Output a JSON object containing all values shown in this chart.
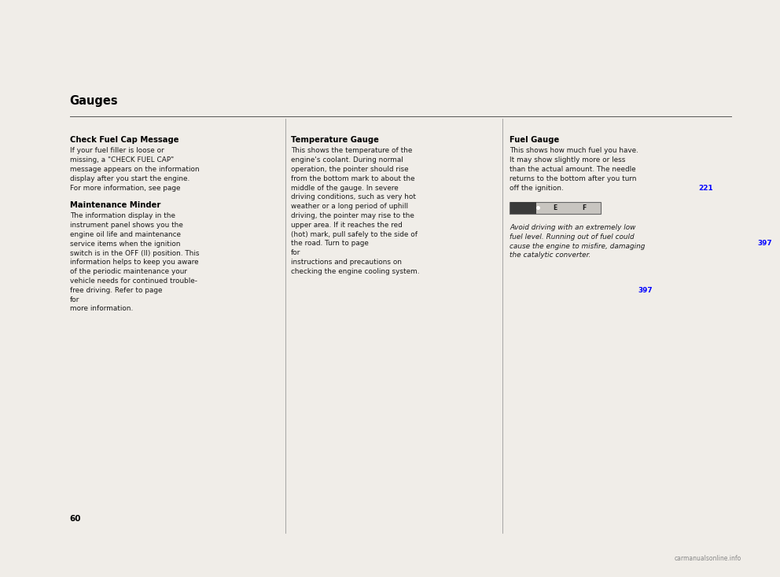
{
  "bg_color": "#f0ede8",
  "text_color": "#1a1a1a",
  "title_color": "#000000",
  "blue_color": "#0000ff",
  "header_text": "Gauges",
  "watermark": "carmanualsonline.info",
  "page_num": "60",
  "col1_title": "Check Fuel Cap Message",
  "col1_p1": "If your fuel filler is loose or\nmissing, a \"CHECK FUEL CAP\"\nmessage appears on the information\ndisplay after you start the engine.\nFor more information, see page ",
  "col1_p1_page": "221",
  "col1_p2_title": "Maintenance Minder",
  "col1_p2": "The information display in the\ninstrument panel shows you the\nengine oil life and maintenance\nservice items when the ignition\nswitch is in the OFF (II) position. This\ninformation helps to keep you aware\nof the periodic maintenance your\nvehicle needs for continued trouble-\nfree driving. Refer to page ",
  "col1_p2_page": "397",
  "col1_p2_end": " for\nmore information.",
  "col2_title": "Temperature Gauge",
  "col2_p1": "This shows the temperature of the\nengine's coolant. During normal\noperation, the pointer should rise\nfrom the bottom mark to about the\nmiddle of the gauge. In severe\ndriving conditions, such as very hot\nweather or a long period of uphill\ndriving, the pointer may rise to the\nupper area. If it reaches the red\n(hot) mark, pull safely to the side of\nthe road. Turn to page ",
  "col2_p1_page": "397",
  "col2_p1_end": " for\ninstructions and precautions on\nchecking the engine cooling system.",
  "col3_title": "Fuel Gauge",
  "col3_p1": "This shows how much fuel you have.\nIt may show slightly more or less\nthan the actual amount. The needle\nreturns to the bottom after you turn\noff the ignition.",
  "col3_p2": "Avoid driving with an extremely low\nfuel level. Running out of fuel could\ncause the engine to misfire, damaging\nthe catalytic converter.",
  "sep_color": "#888888",
  "line_color": "#555555"
}
